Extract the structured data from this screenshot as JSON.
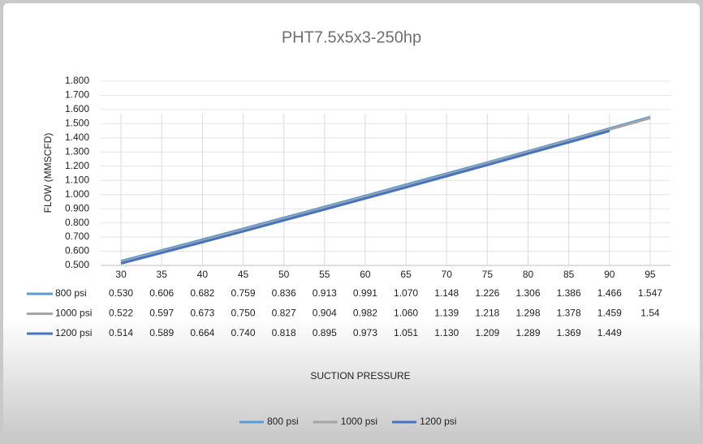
{
  "chart_data": {
    "type": "line",
    "title": "PHT7.5x5x3-250hp",
    "x_label": "SUCTION PRESSURE",
    "y_label": "FLOW (MMSCFD)",
    "categories": [
      30,
      35,
      40,
      45,
      50,
      55,
      60,
      65,
      70,
      75,
      80,
      85,
      90,
      95
    ],
    "series": [
      {
        "name": "800 psi",
        "color": "#5b9bd5",
        "values": [
          0.53,
          0.606,
          0.682,
          0.759,
          0.836,
          0.913,
          0.991,
          1.07,
          1.148,
          1.226,
          1.306,
          1.386,
          1.466,
          1.547
        ],
        "value_labels": [
          "0.530",
          "0.606",
          "0.682",
          "0.759",
          "0.836",
          "0.913",
          "0.991",
          "1.070",
          "1.148",
          "1.226",
          "1.306",
          "1.386",
          "1.466",
          "1.547"
        ]
      },
      {
        "name": "1000 psi",
        "color": "#a5a5a5",
        "values": [
          0.522,
          0.597,
          0.673,
          0.75,
          0.827,
          0.904,
          0.982,
          1.06,
          1.139,
          1.218,
          1.298,
          1.378,
          1.459,
          1.54
        ],
        "value_labels": [
          "0.522",
          "0.597",
          "0.673",
          "0.750",
          "0.827",
          "0.904",
          "0.982",
          "1.060",
          "1.139",
          "1.218",
          "1.298",
          "1.378",
          "1.459",
          "1.54"
        ]
      },
      {
        "name": "1200 psi",
        "color": "#4472c4",
        "values": [
          0.514,
          0.589,
          0.664,
          0.74,
          0.818,
          0.895,
          0.973,
          1.051,
          1.13,
          1.209,
          1.289,
          1.369,
          1.449,
          null
        ],
        "value_labels": [
          "0.514",
          "0.589",
          "0.664",
          "0.740",
          "0.818",
          "0.895",
          "0.973",
          "1.051",
          "1.130",
          "1.209",
          "1.289",
          "1.369",
          "1.449",
          null
        ]
      }
    ],
    "ylim": [
      0.5,
      1.8
    ],
    "yticks": [
      {
        "value": 0.5,
        "label": "0.500"
      },
      {
        "value": 0.6,
        "label": "0.600"
      },
      {
        "value": 0.7,
        "label": "0.700"
      },
      {
        "value": 0.8,
        "label": "0.800"
      },
      {
        "value": 0.9,
        "label": "0.900"
      },
      {
        "value": 1.0,
        "label": "1.000"
      },
      {
        "value": 1.1,
        "label": "1.100"
      },
      {
        "value": 1.2,
        "label": "1.200"
      },
      {
        "value": 1.3,
        "label": "1.300"
      },
      {
        "value": 1.4,
        "label": "1.400"
      },
      {
        "value": 1.5,
        "label": "1.500"
      },
      {
        "value": 1.6,
        "label": "1.600"
      },
      {
        "value": 1.7,
        "label": "1.700"
      },
      {
        "value": 1.8,
        "label": "1.800"
      }
    ],
    "grid": true,
    "legend": "bottom"
  }
}
